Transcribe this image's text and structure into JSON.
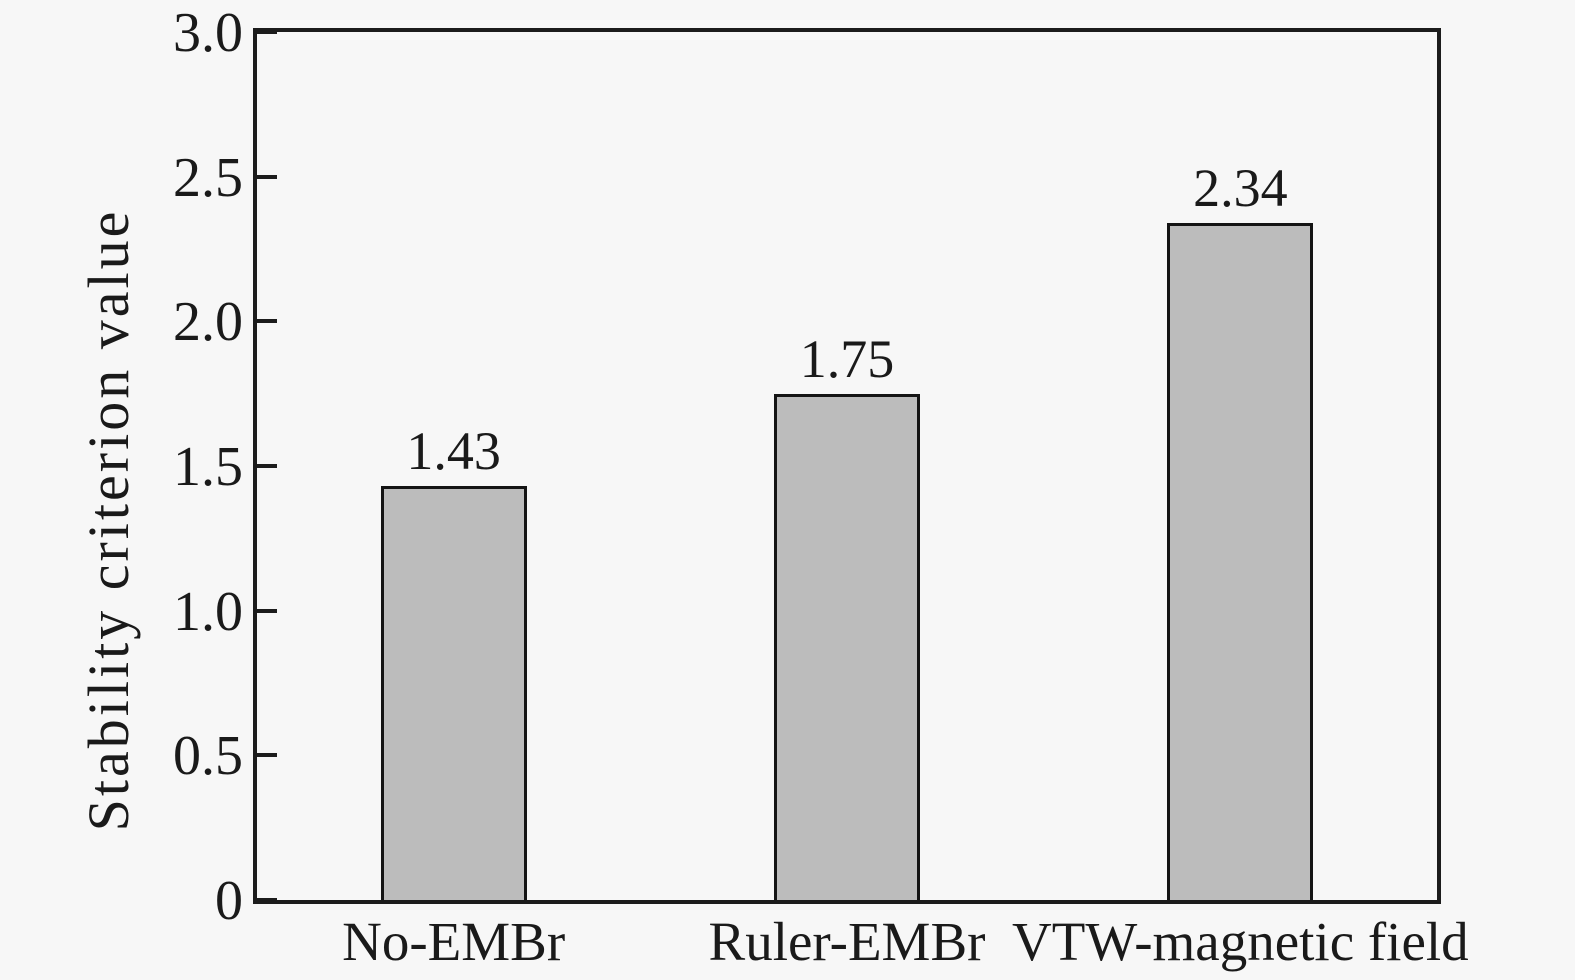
{
  "figure": {
    "colors": {
      "background": "#f7f7f7",
      "axis": "#1c1c1c",
      "text": "#1a1a1a",
      "bar_fill": "#bcbcbc",
      "bar_border": "#141414"
    }
  },
  "chart_data": {
    "type": "bar",
    "title": "",
    "xlabel": "",
    "ylabel": "Stability criterion value",
    "categories": [
      "No-EMBr",
      "Ruler-EMBr",
      "VTW-magnetic field"
    ],
    "values": [
      1.43,
      1.75,
      2.34
    ],
    "bar_value_labels": [
      "1.43",
      "1.75",
      "2.34"
    ],
    "ylim": [
      0,
      3.0
    ],
    "yticks": [
      {
        "value": 0,
        "label": "0"
      },
      {
        "value": 0.5,
        "label": "0.5"
      },
      {
        "value": 1.0,
        "label": "1.0"
      },
      {
        "value": 1.5,
        "label": "1.5"
      },
      {
        "value": 2.0,
        "label": "2.0"
      },
      {
        "value": 2.5,
        "label": "2.5"
      },
      {
        "value": 3.0,
        "label": "3.0"
      }
    ],
    "grid": false,
    "legend": null,
    "layout": {
      "tick_direction": "in",
      "axis_box": true,
      "bar_label_position": "above"
    }
  }
}
